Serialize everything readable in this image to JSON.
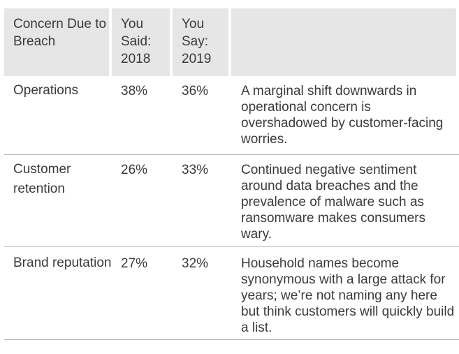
{
  "table": {
    "headers": [
      "Concern Due to Breach",
      "You Said: 2018",
      "You Say: 2019",
      ""
    ],
    "rows": [
      {
        "concern": "Operations",
        "said_2018": "38%",
        "say_2019": "36%",
        "comment": "A marginal shift downwards in operational concern is overshadowed by customer-facing worries."
      },
      {
        "concern": "Customer retention",
        "said_2018": "26%",
        "say_2019": "33%",
        "comment": "Continued negative sentiment around data breaches and the prevalence of malware such as ransomware makes consumers wary."
      },
      {
        "concern": "Brand reputation",
        "said_2018": "27%",
        "say_2019": "32%",
        "comment": "Household names become synonymous with a large attack for years; we’re not naming any here but think customers will quickly build a list."
      }
    ]
  }
}
